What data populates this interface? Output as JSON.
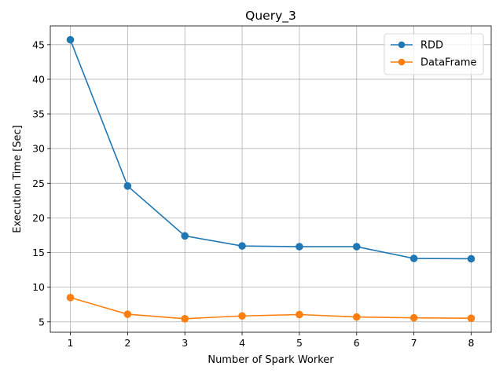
{
  "chart_data": {
    "type": "line",
    "title": "Query_3",
    "xlabel": "Number of Spark Worker",
    "ylabel": "Execution Time [Sec]",
    "x": [
      1,
      2,
      3,
      4,
      5,
      6,
      7,
      8
    ],
    "xlim": [
      0.65,
      8.35
    ],
    "ylim": [
      3.5,
      47.7
    ],
    "xticks": [
      1,
      2,
      3,
      4,
      5,
      6,
      7,
      8
    ],
    "yticks": [
      5,
      10,
      15,
      20,
      25,
      30,
      35,
      40,
      45
    ],
    "grid": true,
    "legend_position": "top-right",
    "series": [
      {
        "name": "RDD",
        "color": "#1f77b4",
        "marker": "circle",
        "values": [
          45.7,
          24.6,
          17.4,
          15.95,
          15.85,
          15.85,
          14.15,
          14.1
        ]
      },
      {
        "name": "DataFrame",
        "color": "#ff7f0e",
        "marker": "circle",
        "values": [
          8.5,
          6.1,
          5.45,
          5.85,
          6.05,
          5.7,
          5.58,
          5.52
        ]
      }
    ]
  }
}
